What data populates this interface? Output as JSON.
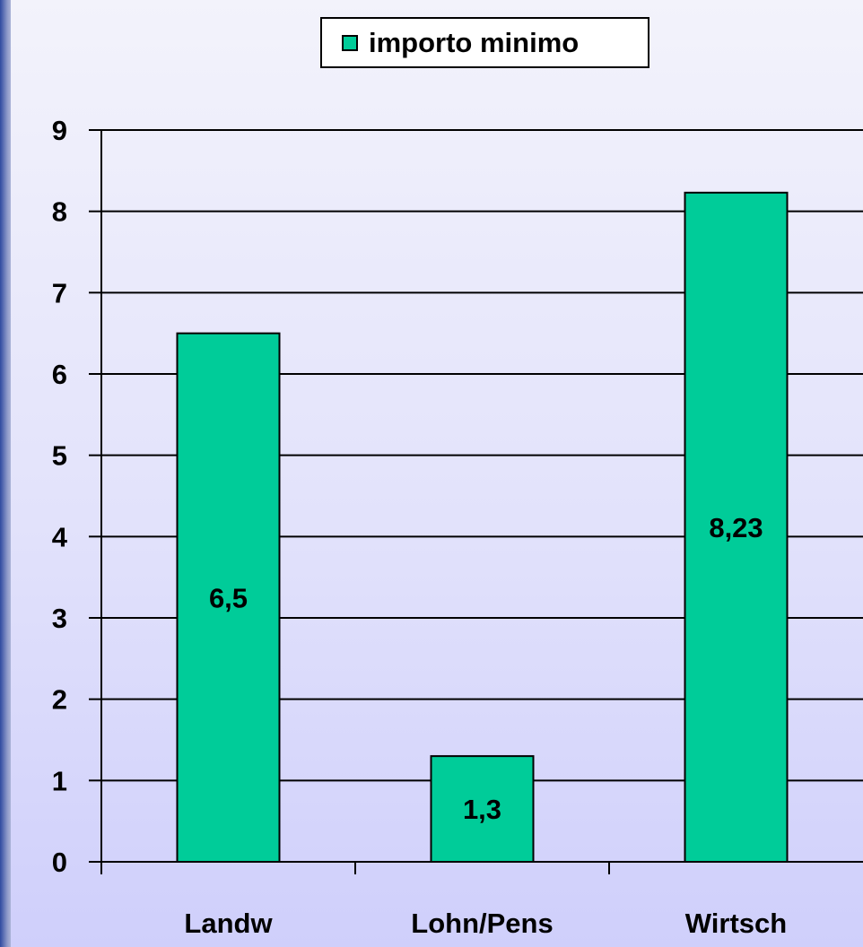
{
  "colors": {
    "bar_fill": "#00cc99",
    "bar_stroke": "#000000",
    "axis": "#000000",
    "grid": "#000000",
    "text": "#000000"
  },
  "legend": {
    "label": "importo minimo",
    "placement": "top-center"
  },
  "chart_data": {
    "type": "bar",
    "categories": [
      "Landw",
      "Lohn/Pens",
      "Wirtsch"
    ],
    "series": [
      {
        "name": "importo minimo",
        "values": [
          6.5,
          1.3,
          8.23
        ],
        "data_labels": [
          "6,5",
          "1,3",
          "8,23"
        ]
      }
    ],
    "title": "",
    "xlabel": "",
    "ylabel": "",
    "ylim": [
      0,
      9
    ],
    "yticks": [
      0,
      1,
      2,
      3,
      4,
      5,
      6,
      7,
      8,
      9
    ],
    "grid": true,
    "legend_position": "top-center"
  }
}
